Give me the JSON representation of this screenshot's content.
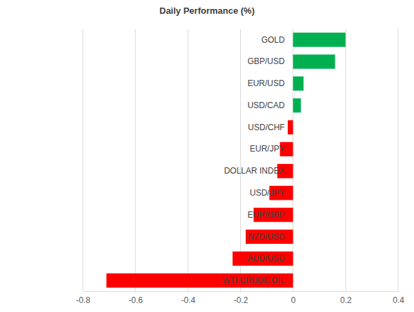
{
  "chart_data": {
    "type": "bar",
    "orientation": "horizontal",
    "title": "Daily Performance (%)",
    "categories": [
      "GOLD",
      "GBP/USD",
      "EUR/USD",
      "USD/CAD",
      "USD/CHF",
      "EUR/JPY",
      "DOLLAR INDEX",
      "USD/JPY",
      "EUR/GBP",
      "NZD/USD",
      "AUD/USD",
      "WTI CRUDE OIL"
    ],
    "values": [
      0.2,
      0.16,
      0.04,
      0.03,
      -0.02,
      -0.05,
      -0.06,
      -0.09,
      -0.15,
      -0.18,
      -0.23,
      -0.71
    ],
    "colors": [
      "#00b050",
      "#00b050",
      "#00b050",
      "#00b050",
      "#ff0000",
      "#ff0000",
      "#ff0000",
      "#ff0000",
      "#ff0000",
      "#ff0000",
      "#ff0000",
      "#ff0000"
    ],
    "xlim": [
      -0.8,
      0.4
    ],
    "xticks": [
      -0.8,
      -0.6,
      -0.4,
      -0.2,
      0,
      0.2,
      0.4
    ],
    "grid": true
  }
}
